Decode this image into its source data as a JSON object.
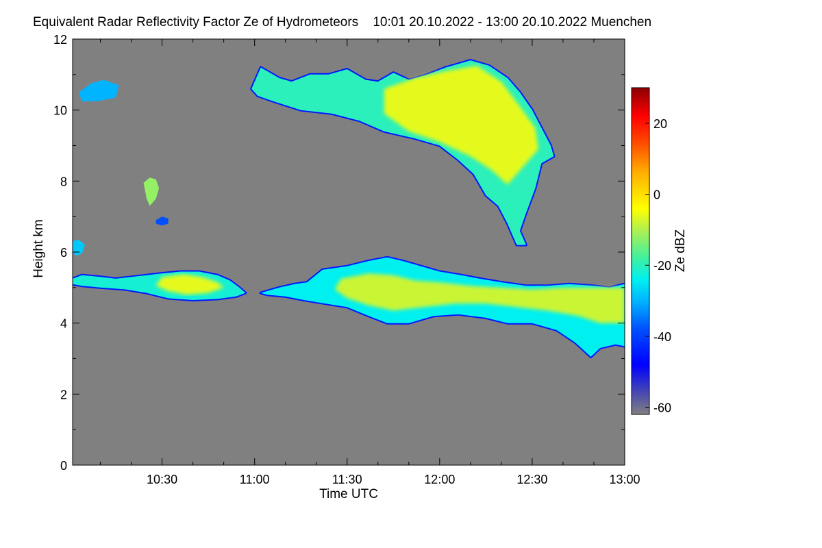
{
  "title": {
    "main": "Equivalent Radar Reflectivity Factor Ze of Hydrometeors",
    "time_range": "10:01 20.10.2022 - 13:00 20.10.2022",
    "location": "Muenchen"
  },
  "chart_data": {
    "type": "heatmap",
    "title": "Equivalent Radar Reflectivity Factor Ze of Hydrometeors   10:01 20.10.2022 - 13:00 20.10.2022 Muenchen",
    "xlabel": "Time UTC",
    "ylabel": "Height km",
    "x_range_minutes_utc": [
      601,
      780
    ],
    "y_range_km": [
      0,
      12
    ],
    "x_ticks": [
      {
        "minute": 630,
        "label": "10:30"
      },
      {
        "minute": 660,
        "label": "11:00"
      },
      {
        "minute": 690,
        "label": "11:30"
      },
      {
        "minute": 720,
        "label": "12:00"
      },
      {
        "minute": 750,
        "label": "12:30"
      },
      {
        "minute": 780,
        "label": "13:00"
      }
    ],
    "y_ticks": [
      {
        "km": 0,
        "label": "0"
      },
      {
        "km": 2,
        "label": "2"
      },
      {
        "km": 4,
        "label": "4"
      },
      {
        "km": 6,
        "label": "6"
      },
      {
        "km": 8,
        "label": "8"
      },
      {
        "km": 10,
        "label": "10"
      },
      {
        "km": 12,
        "label": "12"
      }
    ],
    "colorbar": {
      "label": "Ze dBZ",
      "range_dbz": [
        -62,
        30
      ],
      "ticks": [
        {
          "value": 20,
          "label": "20"
        },
        {
          "value": 0,
          "label": "0"
        },
        {
          "value": -20,
          "label": "-20"
        },
        {
          "value": -40,
          "label": "-40"
        },
        {
          "value": -60,
          "label": "-60"
        }
      ],
      "stops": [
        {
          "value": -62,
          "color": "#808080"
        },
        {
          "value": -56,
          "color": "#4a4ab0"
        },
        {
          "value": -48,
          "color": "#0000ff"
        },
        {
          "value": -38,
          "color": "#0050ff"
        },
        {
          "value": -30,
          "color": "#00b4ff"
        },
        {
          "value": -24,
          "color": "#00f0f0"
        },
        {
          "value": -18,
          "color": "#40f0a0"
        },
        {
          "value": -10,
          "color": "#b0f050"
        },
        {
          "value": -4,
          "color": "#ffff00"
        },
        {
          "value": 6,
          "color": "#ffb000"
        },
        {
          "value": 14,
          "color": "#ff5000"
        },
        {
          "value": 22,
          "color": "#ff0000"
        },
        {
          "value": 30,
          "color": "#8b0000"
        }
      ]
    },
    "background_color": "#808080",
    "echo_regions": [
      {
        "name": "low-cloud-layer-west",
        "points": [
          [
            601,
            5.25
          ],
          [
            604,
            5.35
          ],
          [
            610,
            5.3
          ],
          [
            615,
            5.25
          ],
          [
            620,
            5.3
          ],
          [
            625,
            5.35
          ],
          [
            630,
            5.4
          ],
          [
            636,
            5.45
          ],
          [
            642,
            5.45
          ],
          [
            648,
            5.35
          ],
          [
            652,
            5.2
          ],
          [
            655,
            5.0
          ],
          [
            657,
            4.85
          ],
          [
            654,
            4.75
          ],
          [
            648,
            4.68
          ],
          [
            640,
            4.65
          ],
          [
            632,
            4.7
          ],
          [
            625,
            4.85
          ],
          [
            618,
            4.95
          ],
          [
            610,
            5.0
          ],
          [
            604,
            5.05
          ],
          [
            601,
            5.1
          ]
        ],
        "dbz": -22
      },
      {
        "name": "low-cloud-core-west",
        "points": [
          [
            630,
            5.3
          ],
          [
            637,
            5.38
          ],
          [
            643,
            5.3
          ],
          [
            648,
            5.15
          ],
          [
            650,
            5.0
          ],
          [
            645,
            4.85
          ],
          [
            638,
            4.8
          ],
          [
            632,
            4.9
          ],
          [
            628,
            5.05
          ]
        ],
        "dbz": -6
      },
      {
        "name": "low-cloud-layer-east",
        "points": [
          [
            662,
            4.85
          ],
          [
            668,
            5.0
          ],
          [
            673,
            5.1
          ],
          [
            677,
            5.15
          ],
          [
            682,
            5.5
          ],
          [
            690,
            5.6
          ],
          [
            697,
            5.75
          ],
          [
            703,
            5.85
          ],
          [
            708,
            5.75
          ],
          [
            714,
            5.6
          ],
          [
            720,
            5.45
          ],
          [
            727,
            5.35
          ],
          [
            733,
            5.25
          ],
          [
            740,
            5.15
          ],
          [
            748,
            5.05
          ],
          [
            755,
            5.05
          ],
          [
            762,
            5.1
          ],
          [
            770,
            5.05
          ],
          [
            775,
            5.0
          ],
          [
            780,
            5.1
          ],
          [
            780,
            3.35
          ],
          [
            777,
            3.4
          ],
          [
            772,
            3.3
          ],
          [
            769,
            3.05
          ],
          [
            764,
            3.45
          ],
          [
            758,
            3.8
          ],
          [
            750,
            4.0
          ],
          [
            742,
            4.0
          ],
          [
            735,
            4.15
          ],
          [
            726,
            4.25
          ],
          [
            718,
            4.2
          ],
          [
            710,
            4.0
          ],
          [
            703,
            4.0
          ],
          [
            697,
            4.2
          ],
          [
            690,
            4.45
          ],
          [
            683,
            4.55
          ],
          [
            676,
            4.65
          ],
          [
            670,
            4.75
          ],
          [
            664,
            4.8
          ]
        ],
        "dbz": -24
      },
      {
        "name": "low-cloud-core-east",
        "points": [
          [
            688,
            5.25
          ],
          [
            697,
            5.4
          ],
          [
            705,
            5.35
          ],
          [
            712,
            5.2
          ],
          [
            720,
            5.15
          ],
          [
            730,
            5.05
          ],
          [
            740,
            5.0
          ],
          [
            750,
            4.95
          ],
          [
            760,
            5.0
          ],
          [
            770,
            5.0
          ],
          [
            780,
            5.0
          ],
          [
            780,
            4.0
          ],
          [
            772,
            4.0
          ],
          [
            765,
            4.2
          ],
          [
            755,
            4.35
          ],
          [
            745,
            4.45
          ],
          [
            735,
            4.55
          ],
          [
            725,
            4.55
          ],
          [
            715,
            4.45
          ],
          [
            705,
            4.35
          ],
          [
            697,
            4.5
          ],
          [
            690,
            4.7
          ],
          [
            686,
            4.95
          ]
        ],
        "dbz": -8
      },
      {
        "name": "high-cloud-plume",
        "points": [
          [
            662,
            11.2
          ],
          [
            668,
            10.9
          ],
          [
            672,
            10.8
          ],
          [
            678,
            11.0
          ],
          [
            684,
            11.0
          ],
          [
            690,
            11.15
          ],
          [
            696,
            10.85
          ],
          [
            700,
            10.8
          ],
          [
            705,
            11.05
          ],
          [
            710,
            10.85
          ],
          [
            716,
            11.0
          ],
          [
            722,
            11.2
          ],
          [
            730,
            11.4
          ],
          [
            736,
            11.25
          ],
          [
            742,
            10.9
          ],
          [
            746,
            10.5
          ],
          [
            750,
            10.0
          ],
          [
            753,
            9.5
          ],
          [
            756,
            9.0
          ],
          [
            757,
            8.7
          ],
          [
            753,
            8.5
          ],
          [
            751,
            7.8
          ],
          [
            748,
            7.1
          ],
          [
            746,
            6.6
          ],
          [
            748,
            6.2
          ],
          [
            745,
            6.2
          ],
          [
            742,
            6.8
          ],
          [
            739,
            7.3
          ],
          [
            735,
            7.6
          ],
          [
            731,
            8.2
          ],
          [
            726,
            8.6
          ],
          [
            720,
            9.0
          ],
          [
            712,
            9.2
          ],
          [
            702,
            9.4
          ],
          [
            694,
            9.7
          ],
          [
            685,
            9.9
          ],
          [
            675,
            10.0
          ],
          [
            666,
            10.25
          ],
          [
            661,
            10.4
          ],
          [
            659,
            10.6
          ]
        ],
        "dbz": -20
      },
      {
        "name": "high-cloud-core",
        "points": [
          [
            702,
            10.6
          ],
          [
            712,
            10.9
          ],
          [
            722,
            11.1
          ],
          [
            732,
            11.25
          ],
          [
            740,
            10.8
          ],
          [
            746,
            10.1
          ],
          [
            751,
            9.5
          ],
          [
            752,
            8.9
          ],
          [
            747,
            8.4
          ],
          [
            742,
            7.9
          ],
          [
            737,
            8.3
          ],
          [
            730,
            8.7
          ],
          [
            720,
            9.1
          ],
          [
            710,
            9.4
          ],
          [
            702,
            9.9
          ]
        ],
        "dbz": -6
      },
      {
        "name": "small-high-cell-west",
        "points": [
          [
            603,
            10.5
          ],
          [
            607,
            10.75
          ],
          [
            611,
            10.85
          ],
          [
            616,
            10.7
          ],
          [
            615,
            10.35
          ],
          [
            609,
            10.25
          ],
          [
            604,
            10.25
          ]
        ],
        "dbz": -30
      },
      {
        "name": "mid-level-cell",
        "points": [
          [
            624,
            7.95
          ],
          [
            626,
            8.1
          ],
          [
            628,
            8.05
          ],
          [
            629,
            7.8
          ],
          [
            628,
            7.5
          ],
          [
            626,
            7.3
          ],
          [
            625,
            7.5
          ]
        ],
        "dbz": -12
      },
      {
        "name": "small-cell-6km",
        "points": [
          [
            601,
            6.3
          ],
          [
            603,
            6.35
          ],
          [
            605,
            6.2
          ],
          [
            604,
            5.95
          ],
          [
            602,
            5.9
          ],
          [
            601,
            6.0
          ]
        ],
        "dbz": -28
      },
      {
        "name": "small-cell-7km",
        "points": [
          [
            628,
            6.9
          ],
          [
            630,
            7.0
          ],
          [
            632,
            6.95
          ],
          [
            632,
            6.8
          ],
          [
            630,
            6.75
          ],
          [
            628,
            6.8
          ]
        ],
        "dbz": -38
      }
    ]
  }
}
